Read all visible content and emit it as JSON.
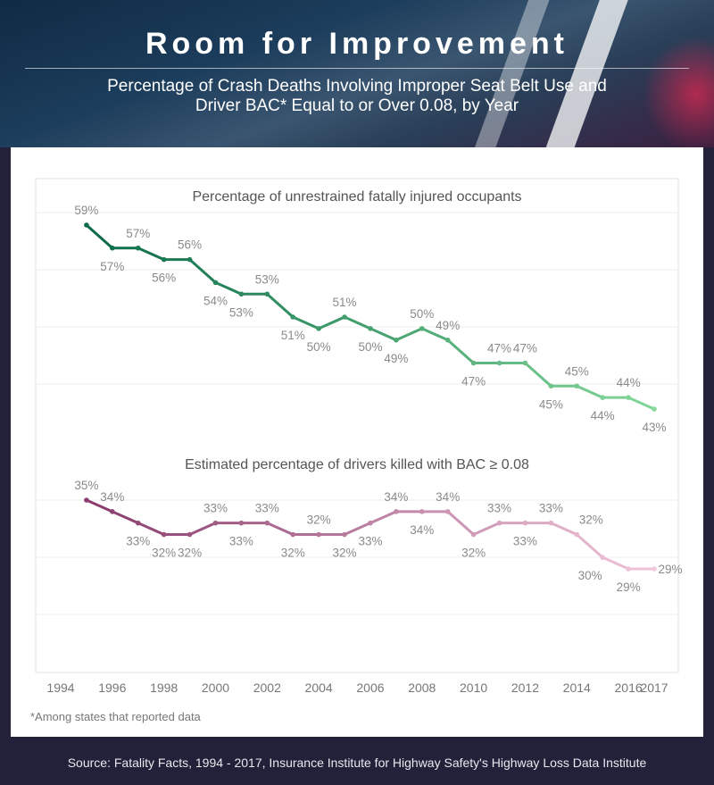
{
  "header": {
    "title": "Room for Improvement",
    "subtitle_line1": "Percentage of Crash Deaths Involving Improper Seat Belt Use and",
    "subtitle_line2": "Driver BAC* Equal to or Over 0.08, by Year"
  },
  "footnote": "*Among states that reported data",
  "source": "Source: Fatality Facts, 1994 - 2017, Insurance Institute for Highway Safety's Highway Loss Data Institute",
  "colors": {
    "green_dark": "#0b6b48",
    "green_light": "#86d99a",
    "pink_dark": "#8a3d6e",
    "pink_light": "#f2c9dc"
  },
  "chart_data": {
    "type": "line",
    "x_ticks": [
      1994,
      1996,
      1998,
      2000,
      2002,
      2004,
      2006,
      2008,
      2010,
      2012,
      2014,
      2016,
      2017
    ],
    "x_range": [
      1994,
      2017
    ],
    "series": [
      {
        "name": "Percentage of unrestrained fatally injured occupants",
        "x": [
          1995,
          1996,
          1997,
          1998,
          1999,
          2000,
          2001,
          2002,
          2003,
          2004,
          2005,
          2006,
          2007,
          2008,
          2009,
          2010,
          2011,
          2012,
          2013,
          2014,
          2015,
          2016,
          2017
        ],
        "values": [
          59,
          57,
          57,
          56,
          56,
          54,
          53,
          53,
          51,
          50,
          51,
          50,
          49,
          50,
          49,
          47,
          47,
          47,
          45,
          45,
          44,
          44,
          43
        ],
        "labels": [
          "59%",
          "57%",
          "57%",
          "56%",
          "56%",
          "54%",
          "53%",
          "53%",
          "51%",
          "50%",
          "51%",
          "50%",
          "49%",
          "50%",
          "49%",
          "47%",
          "47%",
          "47%",
          "45%",
          "45%",
          "44%",
          "44%",
          "43%"
        ]
      },
      {
        "name": "Estimated percentage of drivers killed with BAC ≥ 0.08",
        "x": [
          1995,
          1996,
          1997,
          1998,
          1999,
          2000,
          2001,
          2002,
          2003,
          2004,
          2005,
          2006,
          2007,
          2008,
          2009,
          2010,
          2011,
          2012,
          2013,
          2014,
          2015,
          2016,
          2017
        ],
        "values": [
          35,
          34,
          33,
          32,
          32,
          33,
          33,
          33,
          32,
          32,
          32,
          33,
          34,
          34,
          34,
          32,
          33,
          33,
          33,
          32,
          30,
          29,
          29
        ],
        "labels": [
          "35%",
          "34%",
          "33%",
          "32%",
          "32%",
          "33%",
          "33%",
          "33%",
          "32%",
          "32%",
          "32%",
          "33%",
          "34%",
          "34%",
          "34%",
          "32%",
          "33%",
          "33%",
          "33%",
          "32%",
          "30%",
          "29%",
          "29%"
        ]
      }
    ]
  }
}
